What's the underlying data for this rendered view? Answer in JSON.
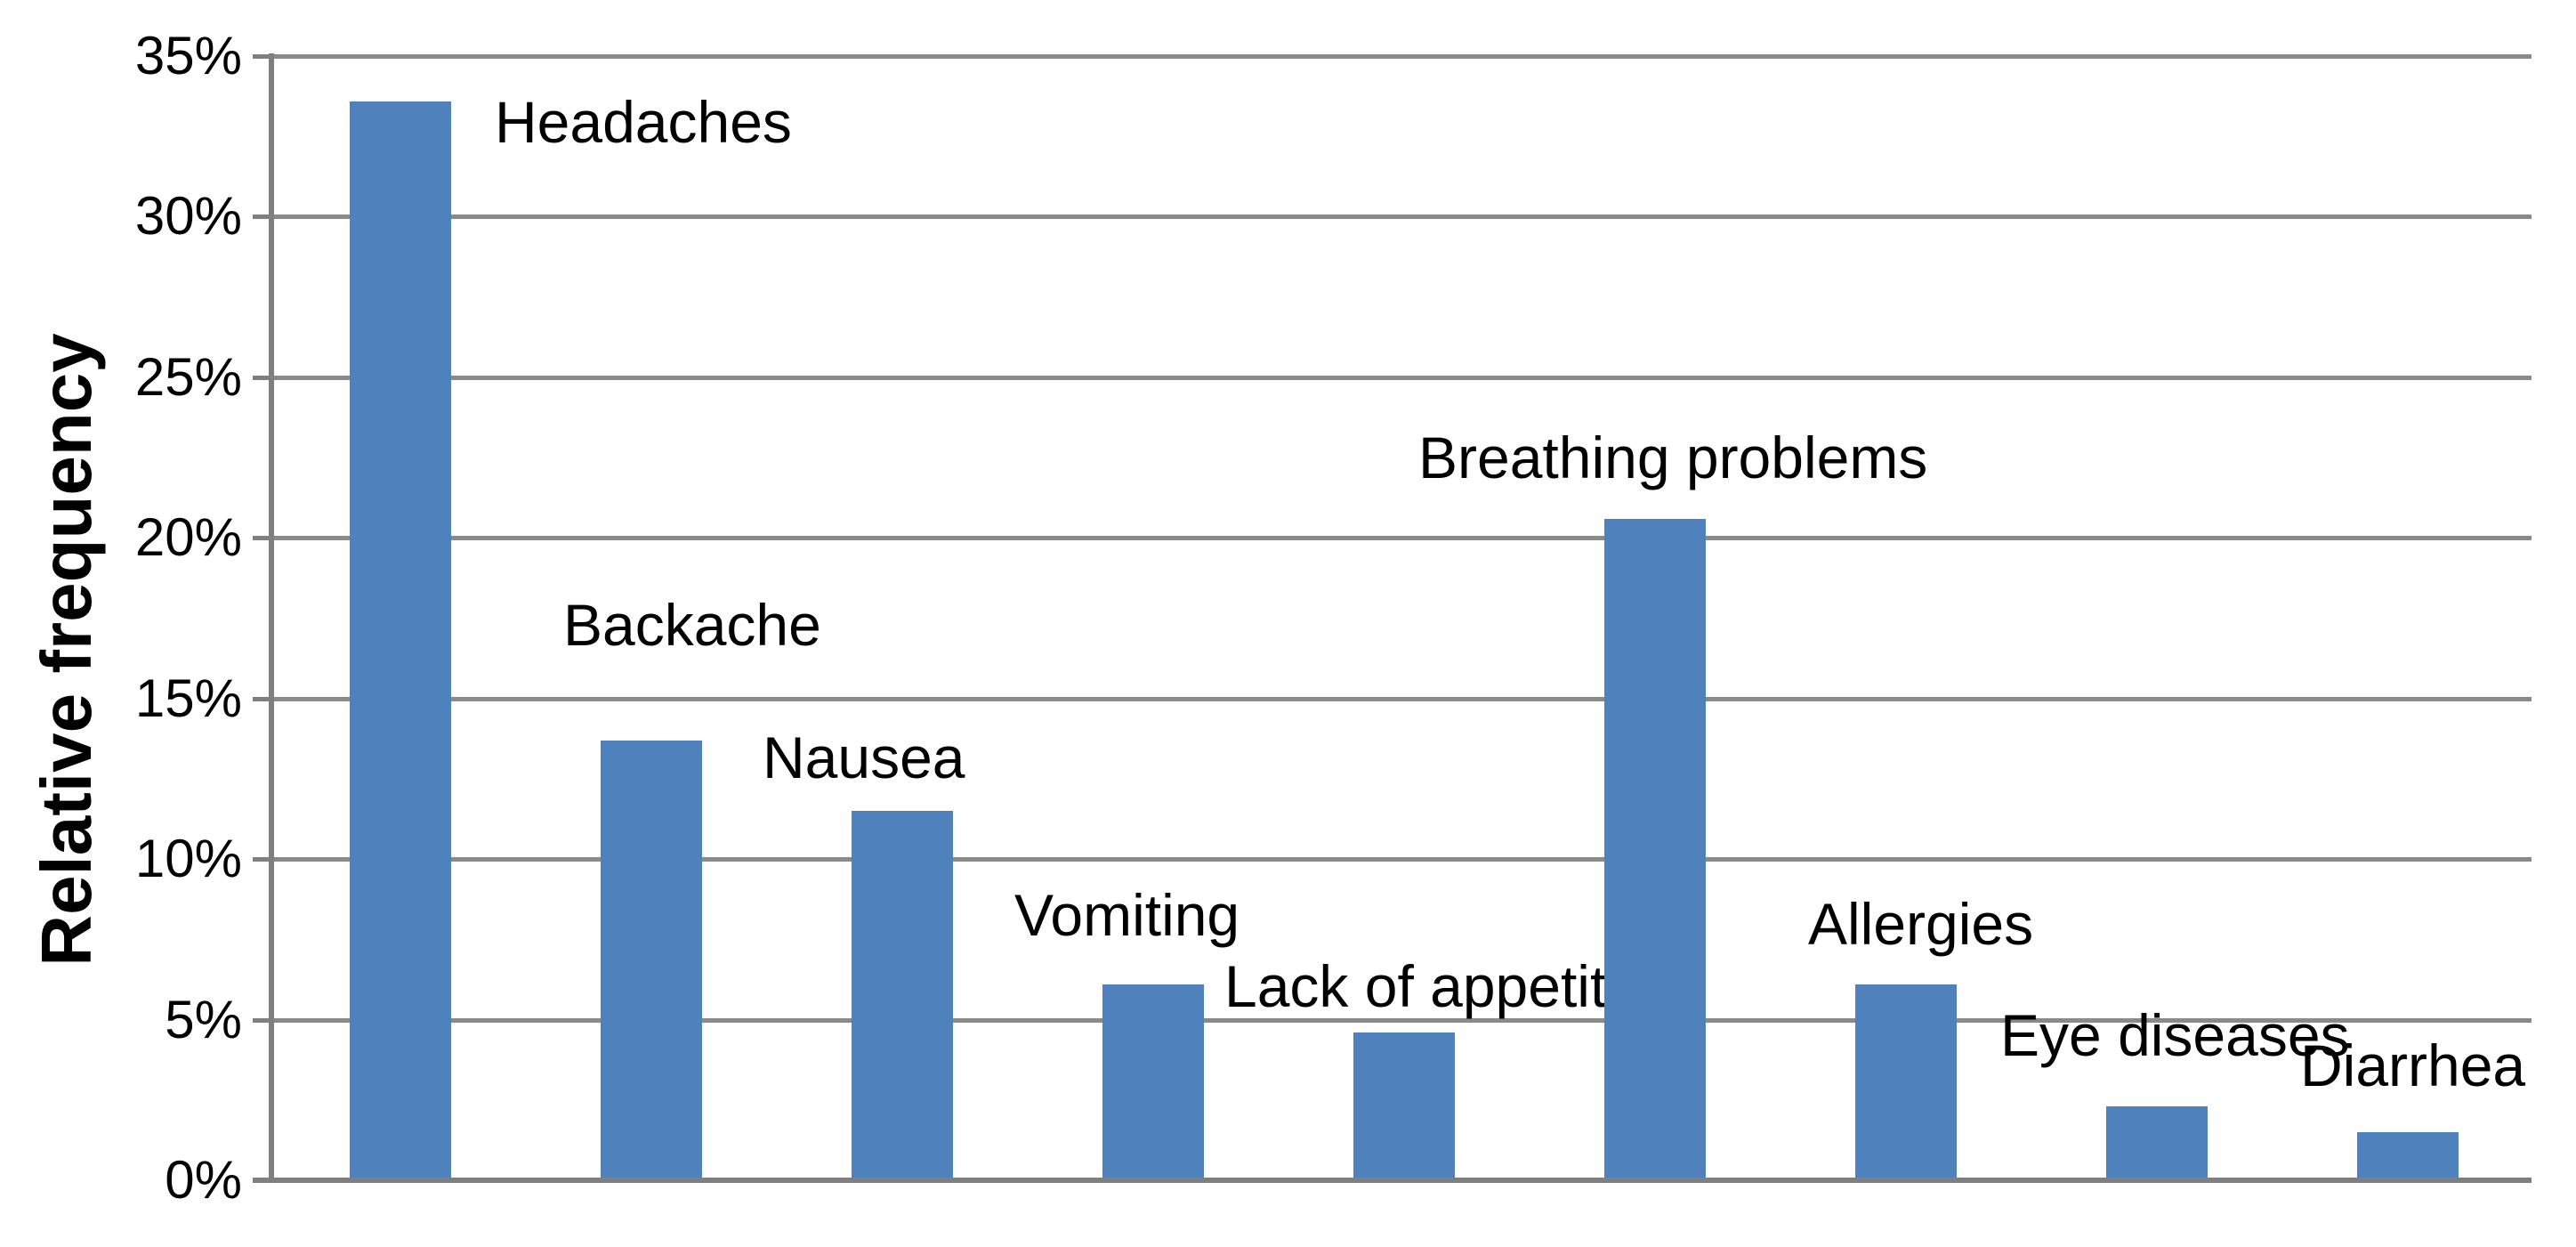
{
  "chart_data": {
    "type": "bar",
    "title": "",
    "xlabel": "",
    "ylabel": "Relative frequency",
    "unit": "%",
    "ylim": [
      0,
      35
    ],
    "y_tick_step": 5,
    "y_tick_labels": [
      "0%",
      "5%",
      "10%",
      "15%",
      "20%",
      "25%",
      "30%",
      "35%"
    ],
    "grid": "horizontal-on",
    "legend": "none",
    "bar_color": "#4f81bd",
    "gridline_color": "#8a8a8a",
    "axis_color": "#7f7f7f",
    "label_color": "#000000",
    "categories": [
      "Headaches",
      "Backache",
      "Nausea",
      "Vomiting",
      "Lack of appetite",
      "Breathing problems",
      "Allergies",
      "Eye diseases",
      "Diarrhea"
    ],
    "values": [
      33.6,
      13.7,
      11.5,
      6.1,
      4.6,
      20.6,
      6.1,
      2.3,
      1.5
    ]
  }
}
